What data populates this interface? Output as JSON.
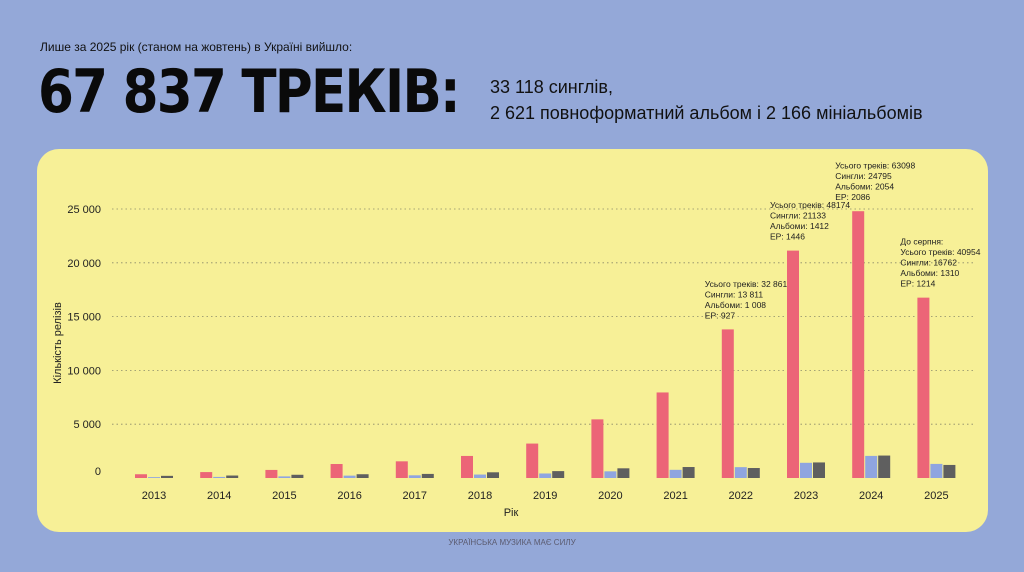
{
  "header": {
    "subtitle": "Лише за 2025 рік (станом на жовтень) в Україні вийшло:",
    "big_number": "67 837 ТРЕКІВ:",
    "summary_line1": "33 118 синглів,",
    "summary_line2": "2 621 повноформатний альбом і 2 166 мініальбомів"
  },
  "footer": {
    "text": "УКРАЇНСЬКА МУЗИКА МАЄ СИЛУ"
  },
  "colors": {
    "background": "#94a8d8",
    "panel": "#f7f097",
    "singles": "#ec6577",
    "albums": "#8fa5e0",
    "ep": "#5f5f5f"
  },
  "chart_data": {
    "type": "bar",
    "xlabel": "Рік",
    "ylabel": "Кількість релізів",
    "ylim": [
      0,
      25000
    ],
    "yticks": [
      0,
      5000,
      10000,
      15000,
      20000,
      25000
    ],
    "ytick_labels": [
      "0",
      "5 000",
      "10 000",
      "15 000",
      "20 000",
      "25 000"
    ],
    "grid": "horizontal dotted",
    "categories": [
      "2013",
      "2014",
      "2015",
      "2016",
      "2017",
      "2018",
      "2019",
      "2020",
      "2021",
      "2022",
      "2023",
      "2024",
      "2025"
    ],
    "series": [
      {
        "values": [
          350,
          550,
          750,
          1300,
          1550,
          2050,
          3200,
          5450,
          7950,
          13811,
          21133,
          24795,
          16762
        ]
      },
      {
        "values": [
          80,
          100,
          150,
          220,
          250,
          320,
          420,
          620,
          760,
          1008,
          1412,
          2054,
          1310
        ]
      },
      {
        "values": [
          200,
          230,
          300,
          350,
          380,
          530,
          640,
          900,
          1020,
          927,
          1446,
          2086,
          1214
        ]
      }
    ],
    "annotations": [
      {
        "category": "2022",
        "lines": [
          "Усього треків: 32 861",
          "Сингли: 13 811",
          "Альбоми: 1 008",
          "EP: 927"
        ]
      },
      {
        "category": "2023",
        "lines": [
          "Усього треків: 48174",
          "Сингли: 21133",
          "Альбоми: 1412",
          "EP: 1446"
        ]
      },
      {
        "category": "2024",
        "lines": [
          "Усього треків: 63098",
          "Сингли: 24795",
          "Альбоми: 2054",
          "EP: 2086"
        ]
      },
      {
        "category": "2025",
        "lines": [
          "До серпня:",
          "Усього треків: 40954",
          "Сингли: 16762",
          "Альбоми: 1310",
          "EP: 1214"
        ]
      }
    ]
  }
}
